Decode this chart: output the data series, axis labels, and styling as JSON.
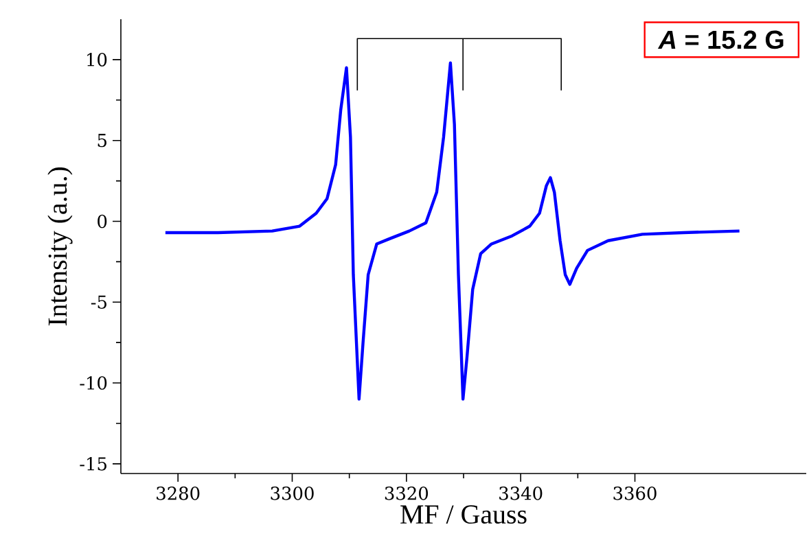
{
  "chart_data": {
    "type": "line",
    "xlabel": "MF / Gauss",
    "ylabel": "Intensity (a.u.)",
    "xlim": [
      3270,
      3390
    ],
    "xticks": [
      3280,
      3300,
      3320,
      3340,
      3360
    ],
    "ylim": [
      -15.6,
      12.5
    ],
    "yticks": [
      -15,
      -10,
      -5,
      0,
      5,
      10
    ],
    "grid": false,
    "marker": "none",
    "line_style": "solid",
    "annotations": [
      "*A* = 15.2 G"
    ],
    "series": [
      {
        "color": "#0000ff",
        "x": [
          3277.8,
          3287,
          3296.5,
          3301.3,
          3304.2,
          3306.1,
          3307.6,
          3308.5,
          3309.5,
          3310.2,
          3310.7,
          3311.7,
          3312.4,
          3313.3,
          3314.8,
          3316.9,
          3320.5,
          3323.4,
          3325.3,
          3326.5,
          3327.7,
          3328.4,
          3329.1,
          3329.9,
          3330.6,
          3331.6,
          3333,
          3334.9,
          3338.5,
          3341.6,
          3343.3,
          3344.5,
          3345.2,
          3345.9,
          3346.9,
          3347.8,
          3348.6,
          3349.8,
          3351.7,
          3355.3,
          3361.3,
          3368.5,
          3378.3
        ],
        "values": [
          -0.7,
          -0.7,
          -0.6,
          -0.3,
          0.5,
          1.4,
          3.5,
          6.9,
          9.5,
          5.2,
          -3.3,
          -11.0,
          -7.5,
          -3.3,
          -1.4,
          -1.1,
          -0.6,
          -0.1,
          1.8,
          5.2,
          9.8,
          6.0,
          -3.3,
          -11.0,
          -8.4,
          -4.2,
          -2.0,
          -1.4,
          -0.9,
          -0.3,
          0.5,
          2.2,
          2.7,
          1.8,
          -1.2,
          -3.3,
          -3.9,
          -2.9,
          -1.8,
          -1.2,
          -0.8,
          -0.7,
          -0.6
        ]
      },
      {
        "color": "#000000",
        "x": [
          3311.4,
          3311.4,
          3347.1,
          3347.1
        ],
        "values": [
          8.1,
          11.3,
          11.3,
          8.1
        ]
      },
      {
        "color": "#000000",
        "x": [
          3329.9,
          3329.9
        ],
        "values": [
          11.3,
          8.1
        ]
      }
    ]
  }
}
